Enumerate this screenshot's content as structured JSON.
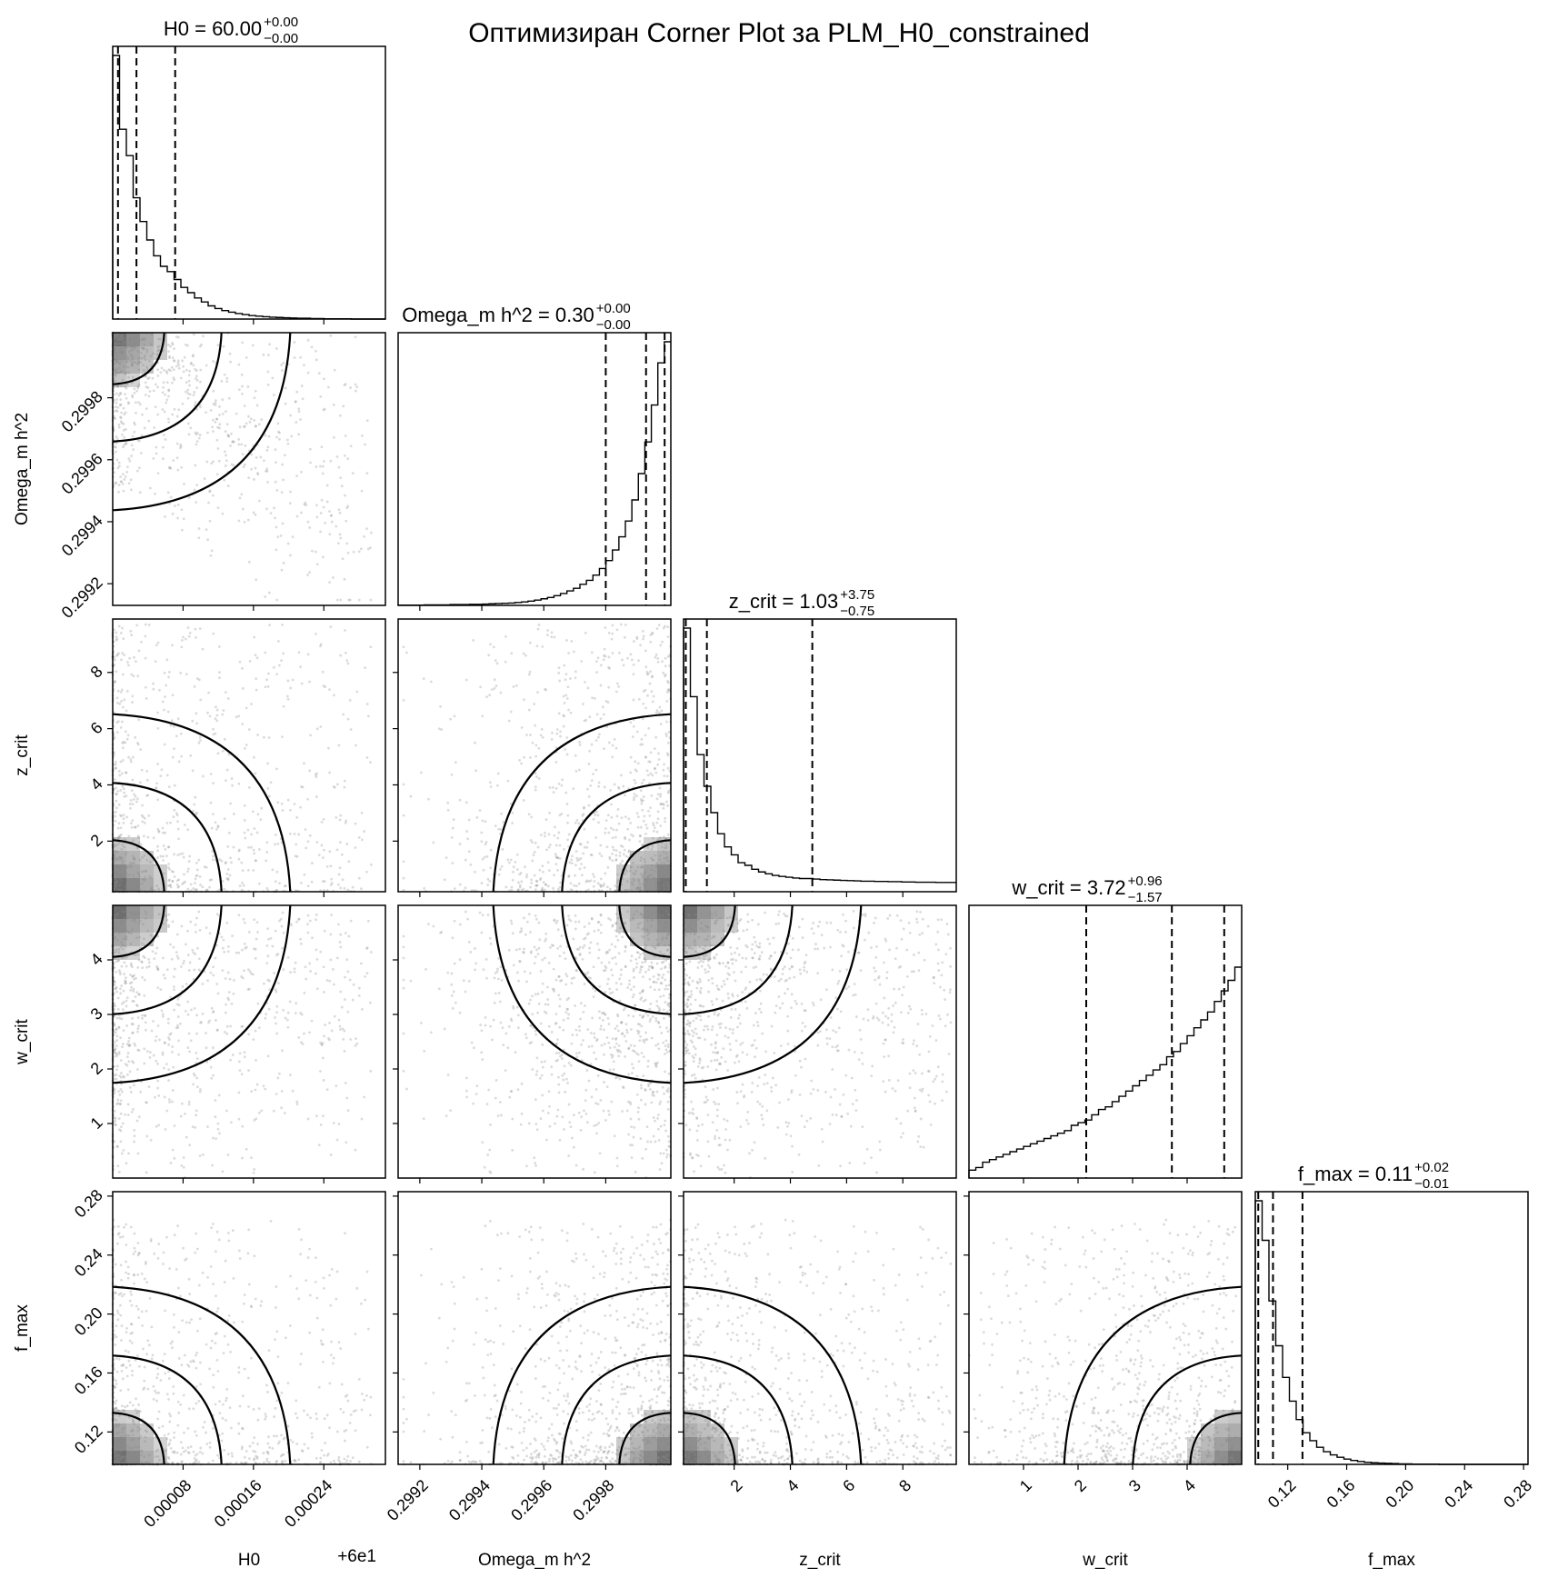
{
  "chart_data": {
    "type": "scatter",
    "title": "Оптимизиран Corner Plot за PLM_H0_constrained",
    "params": [
      {
        "name": "H0",
        "label": "H0",
        "offset_label": "+6e1",
        "range": [
          0,
          0.00031
        ],
        "ticks": [
          8e-05,
          0.00016,
          0.00024
        ],
        "tick_labels": [
          "0.00008",
          "0.00016",
          "0.00024"
        ],
        "summary": {
          "median": "60.00",
          "plus": "+0.00",
          "minus": "−0.00"
        },
        "quantiles": [
          6e-06,
          2.7e-05,
          7.1e-05
        ],
        "hist": [
          1.0,
          0.72,
          0.62,
          0.46,
          0.37,
          0.3,
          0.24,
          0.2,
          0.18,
          0.15,
          0.12,
          0.1,
          0.08,
          0.065,
          0.05,
          0.04,
          0.032,
          0.026,
          0.021,
          0.017,
          0.013,
          0.011,
          0.009,
          0.007,
          0.006,
          0.005,
          0.004,
          0.003,
          0.003,
          0.002,
          0.002,
          0.001,
          0.001,
          0.001,
          0.001,
          0,
          0,
          0,
          0,
          0
        ]
      },
      {
        "name": "Omega_m h^2",
        "label": "Omega_m h^2",
        "range": [
          0.29913,
          0.30001
        ],
        "ticks": [
          0.2992,
          0.2994,
          0.2996,
          0.2998
        ],
        "tick_labels": [
          "0.2992",
          "0.2994",
          "0.2996",
          "0.2998"
        ],
        "summary": {
          "median": "0.30",
          "plus": "+0.00",
          "minus": "−0.00"
        },
        "quantiles": [
          0.2998,
          0.29993,
          0.29999
        ],
        "hist": [
          0.001,
          0.001,
          0.001,
          0.001,
          0.002,
          0.002,
          0.002,
          0.002,
          0.003,
          0.003,
          0.003,
          0.004,
          0.004,
          0.005,
          0.006,
          0.007,
          0.008,
          0.009,
          0.011,
          0.013,
          0.016,
          0.02,
          0.025,
          0.03,
          0.037,
          0.045,
          0.055,
          0.065,
          0.08,
          0.095,
          0.115,
          0.14,
          0.17,
          0.21,
          0.26,
          0.32,
          0.4,
          0.5,
          0.62,
          0.76,
          0.92,
          1.0
        ]
      },
      {
        "name": "z_crit",
        "label": "z_crit",
        "range": [
          0.2,
          9.9
        ],
        "ticks": [
          2,
          4,
          6,
          8
        ],
        "tick_labels": [
          "2",
          "4",
          "6",
          "8"
        ],
        "summary": {
          "median": "1.03",
          "plus": "+3.75",
          "minus": "−0.75"
        },
        "quantiles": [
          0.28,
          1.03,
          4.78
        ],
        "hist": [
          1.0,
          0.74,
          0.52,
          0.4,
          0.3,
          0.22,
          0.17,
          0.14,
          0.11,
          0.1,
          0.085,
          0.075,
          0.068,
          0.062,
          0.058,
          0.055,
          0.052,
          0.05,
          0.05,
          0.048,
          0.046,
          0.045,
          0.044,
          0.043,
          0.042,
          0.041,
          0.04,
          0.04,
          0.039,
          0.039,
          0.038,
          0.038,
          0.037,
          0.037,
          0.036,
          0.036,
          0.036,
          0.035,
          0.035,
          0.035
        ]
      },
      {
        "name": "w_crit",
        "label": "w_crit",
        "range": [
          0,
          5
        ],
        "ticks": [
          1,
          2,
          3,
          4
        ],
        "tick_labels": [
          "1",
          "2",
          "3",
          "4"
        ],
        "summary": {
          "median": "3.72",
          "plus": "+0.96",
          "minus": "−1.57"
        },
        "quantiles": [
          2.15,
          3.72,
          4.68
        ],
        "hist": [
          0.03,
          0.04,
          0.06,
          0.07,
          0.08,
          0.09,
          0.1,
          0.11,
          0.12,
          0.13,
          0.14,
          0.15,
          0.16,
          0.17,
          0.18,
          0.2,
          0.21,
          0.22,
          0.24,
          0.26,
          0.27,
          0.29,
          0.31,
          0.33,
          0.35,
          0.37,
          0.39,
          0.41,
          0.43,
          0.46,
          0.48,
          0.51,
          0.54,
          0.57,
          0.6,
          0.63,
          0.67,
          0.71,
          0.75,
          0.8
        ]
      },
      {
        "name": "f_max",
        "label": "f_max",
        "range": [
          0.098,
          0.283
        ],
        "ticks": [
          0.12,
          0.16,
          0.2,
          0.24,
          0.28
        ],
        "tick_labels": [
          "0.12",
          "0.16",
          "0.20",
          "0.24",
          "0.28"
        ],
        "summary": {
          "median": "0.11",
          "plus": "+0.02",
          "minus": "−0.01"
        },
        "quantiles": [
          0.1,
          0.11,
          0.13
        ],
        "hist": [
          1.0,
          0.85,
          0.62,
          0.45,
          0.33,
          0.24,
          0.17,
          0.12,
          0.09,
          0.065,
          0.048,
          0.036,
          0.027,
          0.02,
          0.015,
          0.011,
          0.008,
          0.006,
          0.005,
          0.004,
          0.003,
          0.002,
          0.002,
          0.001,
          0.001,
          0.001,
          0.001,
          0,
          0,
          0,
          0,
          0,
          0,
          0,
          0,
          0,
          0,
          0,
          0,
          0
        ]
      }
    ]
  }
}
